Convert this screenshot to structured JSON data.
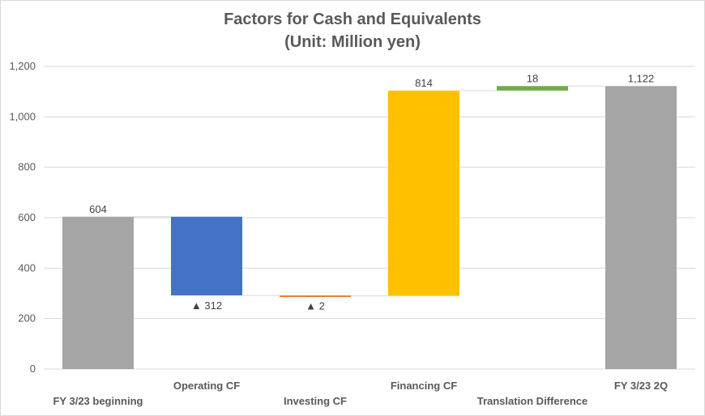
{
  "chart_data": {
    "type": "bar",
    "subtype": "waterfall",
    "title_line1": "Factors for Cash and Equivalents",
    "title_line2": "(Unit: Million yen)",
    "categories": [
      "FY 3/23 beginning",
      "Operating CF",
      "Investing CF",
      "Financing CF",
      "Translation Difference",
      "FY 3/23 2Q"
    ],
    "bars": [
      {
        "base": 0,
        "top": 604,
        "label": "604",
        "label_pos": "above",
        "color": "#a5a5a5"
      },
      {
        "base": 292,
        "top": 604,
        "label": "▲ 312",
        "label_pos": "below",
        "color": "#4472c4"
      },
      {
        "base": 290,
        "top": 292,
        "label": "▲ 2",
        "label_pos": "below",
        "color": "#ed7d31"
      },
      {
        "base": 290,
        "top": 1104,
        "label": "814",
        "label_pos": "above",
        "color": "#ffc000"
      },
      {
        "base": 1104,
        "top": 1122,
        "label": "18",
        "label_pos": "above",
        "color": "#70ad47"
      },
      {
        "base": 0,
        "top": 1122,
        "label": "1,122",
        "label_pos": "above",
        "color": "#a5a5a5"
      }
    ],
    "ylim": [
      0,
      1200
    ],
    "yticks": [
      0,
      200,
      400,
      600,
      800,
      1000,
      1200
    ],
    "ytick_labels": [
      "0",
      "200",
      "400",
      "600",
      "800",
      "1,000",
      "1,200"
    ],
    "grid": true,
    "connectors": true,
    "xlabel": "",
    "ylabel": ""
  }
}
